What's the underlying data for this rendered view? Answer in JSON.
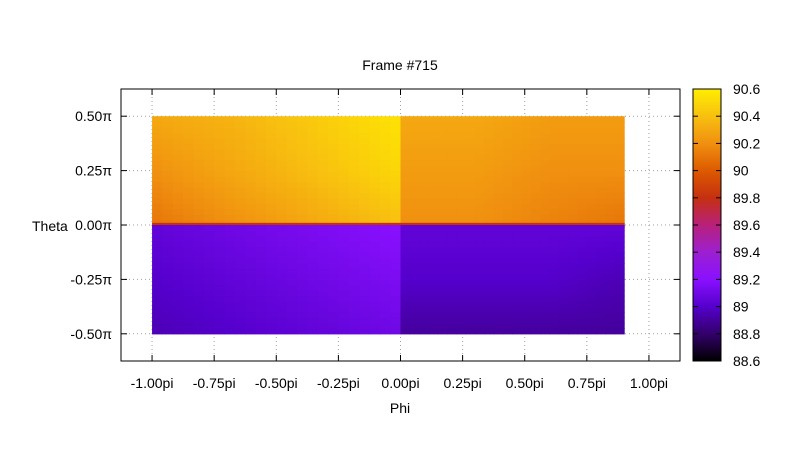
{
  "chart_data": {
    "type": "heatmap",
    "title": "Frame #715",
    "xlabel": "Phi",
    "ylabel": "Theta",
    "xlim": [
      -1.125,
      1.125
    ],
    "ylim": [
      -0.625,
      0.625
    ],
    "x_ticks": [
      {
        "value": -1.0,
        "label": "-1.00pi"
      },
      {
        "value": -0.75,
        "label": "-0.75pi"
      },
      {
        "value": -0.5,
        "label": "-0.50pi"
      },
      {
        "value": -0.25,
        "label": "-0.25pi"
      },
      {
        "value": 0.0,
        "label": "0.00pi"
      },
      {
        "value": 0.25,
        "label": "0.25pi"
      },
      {
        "value": 0.5,
        "label": "0.50pi"
      },
      {
        "value": 0.75,
        "label": "0.75pi"
      },
      {
        "value": 1.0,
        "label": "1.00pi"
      }
    ],
    "y_ticks": [
      {
        "value": 0.5,
        "label": "0.50π"
      },
      {
        "value": 0.25,
        "label": "0.25π"
      },
      {
        "value": 0.0,
        "label": "0.00π"
      },
      {
        "value": -0.25,
        "label": "-0.25π"
      },
      {
        "value": -0.5,
        "label": "-0.50π"
      }
    ],
    "grid": true,
    "data_extent": {
      "phi": [
        -1.0,
        0.9
      ],
      "theta": [
        -0.5,
        0.5
      ]
    },
    "colorbar": {
      "range": [
        88.6,
        90.6
      ],
      "ticks": [
        "90.6",
        "90.4",
        "90.2",
        "90",
        "89.8",
        "89.6",
        "89.4",
        "89.2",
        "89",
        "88.8",
        "88.6"
      ],
      "palette": [
        "#000000",
        "#33006b",
        "#5500cc",
        "#8a10ff",
        "#9c20d0",
        "#b8207a",
        "#c53010",
        "#dd5a00",
        "#f09010",
        "#f8c010",
        "#ffee00"
      ]
    },
    "regions": [
      {
        "name": "upper-left",
        "phi": [
          -1.0,
          0.0
        ],
        "theta": [
          0.0,
          0.5
        ],
        "values": [
          [
            90.1,
            90.2,
            90.3,
            90.4
          ],
          [
            90.2,
            90.3,
            90.4,
            90.5
          ],
          [
            90.3,
            90.35,
            90.45,
            90.55
          ]
        ]
      },
      {
        "name": "upper-right",
        "phi": [
          0.0,
          0.9
        ],
        "theta": [
          0.0,
          0.5
        ],
        "values": [
          [
            90.2,
            90.2,
            90.15,
            90.1
          ],
          [
            90.25,
            90.25,
            90.2,
            90.2
          ],
          [
            90.3,
            90.3,
            90.25,
            90.25
          ]
        ]
      },
      {
        "name": "boundary",
        "phi": [
          -1.0,
          0.9
        ],
        "theta": [
          -0.01,
          0.01
        ],
        "values": [
          [
            89.8
          ]
        ]
      },
      {
        "name": "lower-left",
        "phi": [
          -1.0,
          0.0
        ],
        "theta": [
          -0.5,
          0.0
        ],
        "values": [
          [
            88.95,
            89.0,
            89.05,
            89.1
          ],
          [
            89.0,
            89.05,
            89.1,
            89.15
          ],
          [
            89.05,
            89.1,
            89.15,
            89.2
          ]
        ]
      },
      {
        "name": "lower-right",
        "phi": [
          0.0,
          0.9
        ],
        "theta": [
          -0.5,
          0.0
        ],
        "values": [
          [
            88.9,
            88.9,
            88.9,
            88.9
          ],
          [
            89.0,
            89.0,
            89.0,
            88.95
          ],
          [
            89.05,
            89.05,
            89.05,
            89.05
          ]
        ]
      }
    ]
  }
}
